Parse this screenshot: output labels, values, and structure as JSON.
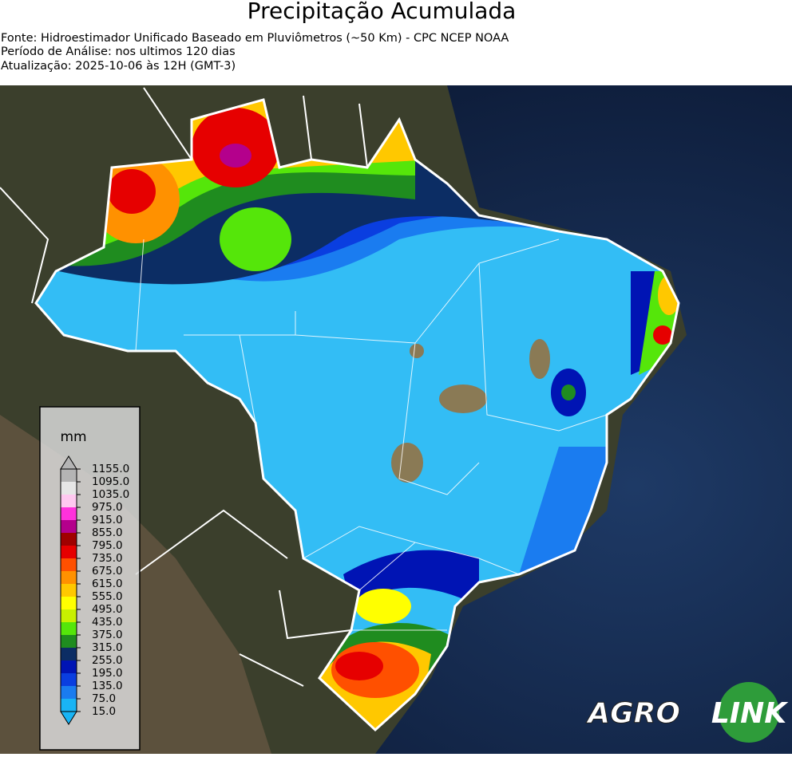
{
  "header": {
    "title": "Precipitação Acumulada",
    "lines": [
      "Fonte: Hidroestimador Unificado Baseado em Pluviômetros (~50 Km) - CPC NCEP NOAA",
      "Período de Análise: nos ultimos 120 dias",
      "Atualização: 2025-10-06 às 12H (GMT-3)"
    ]
  },
  "colorbar": {
    "unit": "mm",
    "ticks": [
      {
        "value": 15,
        "label": "15.0"
      },
      {
        "value": 75,
        "label": "75.0"
      },
      {
        "value": 135,
        "label": "135.0"
      },
      {
        "value": 195,
        "label": "195.0"
      },
      {
        "value": 255,
        "label": "255.0"
      },
      {
        "value": 315,
        "label": "315.0"
      },
      {
        "value": 375,
        "label": "375.0"
      },
      {
        "value": 435,
        "label": "435.0"
      },
      {
        "value": 495,
        "label": "495.0"
      },
      {
        "value": 555,
        "label": "555.0"
      },
      {
        "value": 615,
        "label": "615.0"
      },
      {
        "value": 675,
        "label": "675.0"
      },
      {
        "value": 735,
        "label": "735.0"
      },
      {
        "value": 795,
        "label": "795.0"
      },
      {
        "value": 855,
        "label": "855.0"
      },
      {
        "value": 915,
        "label": "915.0"
      },
      {
        "value": 975,
        "label": "975.0"
      },
      {
        "value": 1035,
        "label": "1035.0"
      },
      {
        "value": 1095,
        "label": "1095.0"
      },
      {
        "value": 1155,
        "label": "1155.0"
      }
    ],
    "colors": [
      "#19b4f5",
      "#1a7cf0",
      "#0a3ee0",
      "#0014b4",
      "#0c2d64",
      "#1f8c1f",
      "#55e60a",
      "#c8f000",
      "#ffff00",
      "#ffc800",
      "#ff9100",
      "#ff5000",
      "#e60000",
      "#a00000",
      "#b4008c",
      "#ff32dc",
      "#ffc8f0",
      "#e6e6e6",
      "#b4b4b4"
    ]
  },
  "logo": {
    "left": "AGRO",
    "right": "LINK"
  }
}
